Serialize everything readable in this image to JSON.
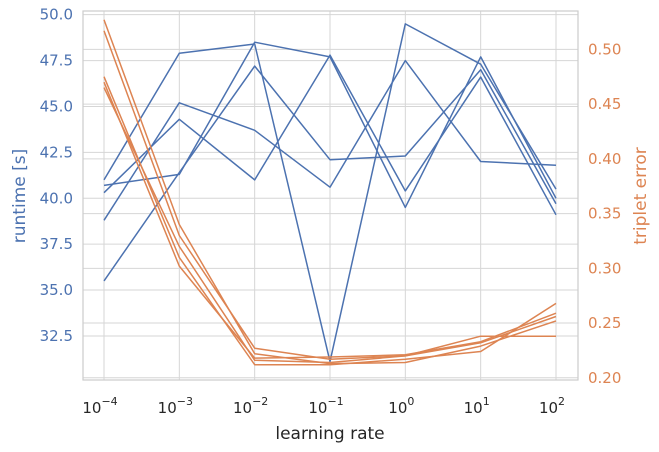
{
  "chart_data": {
    "type": "line",
    "xlabel": "learning rate",
    "ylabel_left": "runtime [s]",
    "ylabel_right": "triplet error",
    "x_scale": "log",
    "x": [
      0.0001,
      0.001,
      0.01,
      0.1,
      1,
      10,
      100
    ],
    "x_tick_labels": [
      {
        "base": "10",
        "exp": "−4"
      },
      {
        "base": "10",
        "exp": "−3"
      },
      {
        "base": "10",
        "exp": "−2"
      },
      {
        "base": "10",
        "exp": "−1"
      },
      {
        "base": "10",
        "exp": "0"
      },
      {
        "base": "10",
        "exp": "1"
      },
      {
        "base": "10",
        "exp": "2"
      }
    ],
    "y_left_range": [
      30.1,
      50.2
    ],
    "y_left_ticks": [
      "32.5",
      "35.0",
      "37.5",
      "40.0",
      "42.5",
      "45.0",
      "47.5",
      "50.0"
    ],
    "y_right_range": [
      0.198,
      0.535
    ],
    "y_right_ticks": [
      "0.20",
      "0.25",
      "0.30",
      "0.35",
      "0.40",
      "0.45",
      "0.50"
    ],
    "grid": true,
    "colors": {
      "left": "#4c72b0",
      "right": "#dd8452",
      "grid": "#d6d6d6",
      "text": "#262626"
    },
    "series_left": [
      {
        "values": [
          41.0,
          47.9,
          48.4,
          31.1,
          49.5,
          47.3,
          40.5
        ]
      },
      {
        "values": [
          40.7,
          41.3,
          48.5,
          47.7,
          39.5,
          47.7,
          40.0
        ]
      },
      {
        "values": [
          35.5,
          41.4,
          47.2,
          42.1,
          42.3,
          47.0,
          39.7
        ]
      },
      {
        "values": [
          40.3,
          44.3,
          41.0,
          47.8,
          40.4,
          46.6,
          39.1
        ]
      },
      {
        "values": [
          38.8,
          45.2,
          43.7,
          40.6,
          47.5,
          42.0,
          41.8
        ]
      }
    ],
    "series_right": [
      {
        "values": [
          0.527,
          0.34,
          0.222,
          0.213,
          0.214,
          0.229,
          0.252
        ]
      },
      {
        "values": [
          0.517,
          0.33,
          0.227,
          0.217,
          0.22,
          0.232,
          0.256
        ]
      },
      {
        "values": [
          0.47,
          0.302,
          0.218,
          0.219,
          0.221,
          0.233,
          0.259
        ]
      },
      {
        "values": [
          0.475,
          0.31,
          0.212,
          0.212,
          0.217,
          0.224,
          0.268
        ]
      },
      {
        "values": [
          0.465,
          0.32,
          0.216,
          0.214,
          0.22,
          0.238,
          0.238
        ]
      }
    ]
  }
}
